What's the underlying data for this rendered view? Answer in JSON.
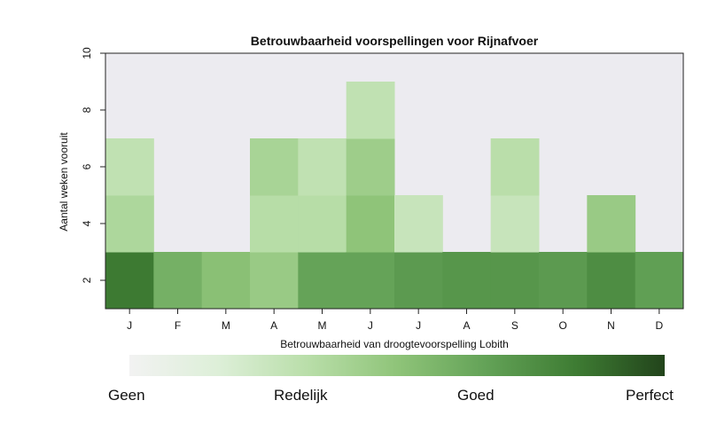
{
  "chart_data": {
    "type": "heatmap",
    "title": "Betrouwbaarheid voorspellingen voor Rijnafvoer",
    "ylabel": "Aantal weken vooruit",
    "xlabel": "",
    "categories": [
      "J",
      "F",
      "M",
      "A",
      "M",
      "J",
      "J",
      "A",
      "S",
      "O",
      "N",
      "D"
    ],
    "y_ticks": [
      2,
      4,
      6,
      8,
      10
    ],
    "ylim": [
      1,
      10
    ],
    "background_color": "#ECEBF0",
    "cells": [
      {
        "month": 0,
        "y0": 1,
        "y1": 3,
        "value": 0.84
      },
      {
        "month": 0,
        "y0": 3,
        "y1": 5,
        "value": 0.38
      },
      {
        "month": 0,
        "y0": 5,
        "y1": 7,
        "value": 0.3
      },
      {
        "month": 1,
        "y0": 1,
        "y1": 3,
        "value": 0.6
      },
      {
        "month": 2,
        "y0": 1,
        "y1": 3,
        "value": 0.52
      },
      {
        "month": 3,
        "y0": 1,
        "y1": 3,
        "value": 0.46
      },
      {
        "month": 3,
        "y0": 3,
        "y1": 5,
        "value": 0.34
      },
      {
        "month": 3,
        "y0": 5,
        "y1": 7,
        "value": 0.4
      },
      {
        "month": 4,
        "y0": 1,
        "y1": 3,
        "value": 0.66
      },
      {
        "month": 4,
        "y0": 3,
        "y1": 5,
        "value": 0.34
      },
      {
        "month": 4,
        "y0": 5,
        "y1": 7,
        "value": 0.3
      },
      {
        "month": 5,
        "y0": 1,
        "y1": 3,
        "value": 0.66
      },
      {
        "month": 5,
        "y0": 3,
        "y1": 5,
        "value": 0.5
      },
      {
        "month": 5,
        "y0": 5,
        "y1": 7,
        "value": 0.44
      },
      {
        "month": 5,
        "y0": 7,
        "y1": 9,
        "value": 0.3
      },
      {
        "month": 6,
        "y0": 1,
        "y1": 3,
        "value": 0.7
      },
      {
        "month": 6,
        "y0": 3,
        "y1": 5,
        "value": 0.27
      },
      {
        "month": 7,
        "y0": 1,
        "y1": 3,
        "value": 0.72
      },
      {
        "month": 8,
        "y0": 1,
        "y1": 3,
        "value": 0.72
      },
      {
        "month": 8,
        "y0": 3,
        "y1": 5,
        "value": 0.27
      },
      {
        "month": 8,
        "y0": 5,
        "y1": 7,
        "value": 0.33
      },
      {
        "month": 9,
        "y0": 1,
        "y1": 3,
        "value": 0.7
      },
      {
        "month": 10,
        "y0": 1,
        "y1": 3,
        "value": 0.76
      },
      {
        "month": 10,
        "y0": 3,
        "y1": 5,
        "value": 0.46
      },
      {
        "month": 11,
        "y0": 1,
        "y1": 3,
        "value": 0.68
      }
    ]
  },
  "colorbar": {
    "title": "Betrouwbaarheid van droogtevoorspelling Lobith",
    "colors": [
      "#F2F2F2",
      "#DDEFD8",
      "#B9DEA9",
      "#8FC479",
      "#63A257",
      "#3E7C33",
      "#22441B"
    ],
    "labels": [
      "Geen",
      "Redelijk",
      "Goed",
      "Perfect"
    ]
  }
}
